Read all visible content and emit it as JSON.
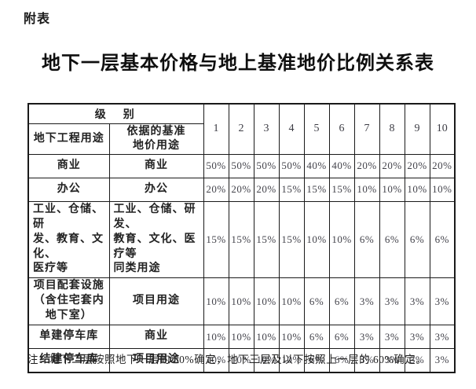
{
  "page": {
    "tag": "附表",
    "title": "地下一层基本价格与地上基准地价比例关系表",
    "note": "注：地下二层按照地下一层的 50%确定，地下三层及以下按照上一层的 60%确定。"
  },
  "table": {
    "header": {
      "level_label": "级　别",
      "use_label": "地下工程用途",
      "basis_label": "依据的基准\n地价用途",
      "levels": [
        "1",
        "2",
        "3",
        "4",
        "5",
        "6",
        "7",
        "8",
        "9",
        "10"
      ]
    },
    "rows": [
      {
        "use": "商业",
        "basis": "商业",
        "align": "center",
        "values": [
          "50%",
          "50%",
          "50%",
          "50%",
          "40%",
          "40%",
          "20%",
          "20%",
          "20%",
          "20%"
        ]
      },
      {
        "use": "办公",
        "basis": "办公",
        "align": "center",
        "values": [
          "20%",
          "20%",
          "20%",
          "15%",
          "15%",
          "15%",
          "10%",
          "10%",
          "10%",
          "10%"
        ]
      },
      {
        "use": "工业、仓储、研\n发、教育、文化、\n医疗等",
        "basis": "工业、仓储、研发、\n教育、文化、医疗等\n同类用途",
        "align": "left",
        "values": [
          "15%",
          "15%",
          "15%",
          "15%",
          "10%",
          "10%",
          "6%",
          "6%",
          "6%",
          "6%"
        ]
      },
      {
        "use": "项目配套设施\n（含住宅套内\n地下室）",
        "basis": "项目用途",
        "align": "center",
        "values": [
          "10%",
          "10%",
          "10%",
          "10%",
          "6%",
          "6%",
          "3%",
          "3%",
          "3%",
          "3%"
        ]
      },
      {
        "use": "单建停车库",
        "basis": "商业",
        "align": "center",
        "values": [
          "10%",
          "10%",
          "10%",
          "10%",
          "6%",
          "6%",
          "3%",
          "3%",
          "3%",
          "3%"
        ]
      },
      {
        "use": "结建停车库",
        "basis": "项目用途",
        "align": "center",
        "values": [
          "10%",
          "10%",
          "10%",
          "10%",
          "6%",
          "6%",
          "3%",
          "3%",
          "3%",
          "3%"
        ]
      }
    ]
  }
}
